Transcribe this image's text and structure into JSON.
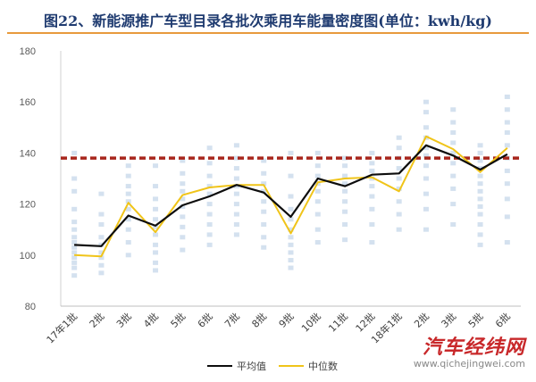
{
  "header": {
    "title": "图22、新能源推广车型目录各批次乘用车能量密度图(单位：kwh/kg)"
  },
  "watermark": {
    "name": "汽车经纬网",
    "url": "www.qichejingwei.com"
  },
  "colors": {
    "mean": "#0d0d0d",
    "median": "#f0c419",
    "reference": "#a8261c",
    "scatter": "#c5d7ea",
    "title": "#1f3b70",
    "title_rule": "#e89a3c"
  },
  "chart_data": {
    "type": "line",
    "title": "图22、新能源推广车型目录各批次乘用车能量密度图(单位：kwh/kg)",
    "categories": [
      "17年1批",
      "2批",
      "3批",
      "4批",
      "5批",
      "6批",
      "7批",
      "8批",
      "9批",
      "10批",
      "11批",
      "12批",
      "18年1批",
      "2批",
      "3批",
      "5批",
      "6批"
    ],
    "ylim": [
      80,
      180
    ],
    "yticks": [
      80,
      100,
      120,
      140,
      160,
      180
    ],
    "grid": false,
    "legend_position": "bottom",
    "series": [
      {
        "name": "平均值",
        "color": "#0d0d0d",
        "values": [
          104,
          103.5,
          115.5,
          111.5,
          119.5,
          123,
          127.5,
          124.5,
          115,
          130,
          127,
          131.5,
          132,
          143,
          139,
          133.5,
          139.5
        ]
      },
      {
        "name": "中位数",
        "color": "#f0c419",
        "values": [
          100,
          99.5,
          120.5,
          109,
          123.5,
          126.5,
          127.5,
          127.5,
          108.5,
          128.5,
          130,
          130.5,
          125,
          146.5,
          141.5,
          132.5,
          142
        ]
      }
    ],
    "reference_line": {
      "value": 138
    },
    "scatter_points": [
      [
        0,
        92
      ],
      [
        0,
        95
      ],
      [
        0,
        97
      ],
      [
        0,
        99
      ],
      [
        0,
        101
      ],
      [
        0,
        103
      ],
      [
        0,
        105
      ],
      [
        0,
        107
      ],
      [
        0,
        110
      ],
      [
        0,
        113
      ],
      [
        0,
        118
      ],
      [
        0,
        125
      ],
      [
        0,
        130
      ],
      [
        0,
        140
      ],
      [
        1,
        93
      ],
      [
        1,
        96
      ],
      [
        1,
        99
      ],
      [
        1,
        101
      ],
      [
        1,
        104
      ],
      [
        1,
        107
      ],
      [
        1,
        112
      ],
      [
        1,
        116
      ],
      [
        1,
        124
      ],
      [
        2,
        100
      ],
      [
        2,
        105
      ],
      [
        2,
        110
      ],
      [
        2,
        114
      ],
      [
        2,
        118
      ],
      [
        2,
        121
      ],
      [
        2,
        124
      ],
      [
        2,
        127
      ],
      [
        2,
        131
      ],
      [
        2,
        135
      ],
      [
        3,
        94
      ],
      [
        3,
        97
      ],
      [
        3,
        101
      ],
      [
        3,
        104
      ],
      [
        3,
        108
      ],
      [
        3,
        111
      ],
      [
        3,
        114
      ],
      [
        3,
        118
      ],
      [
        3,
        122
      ],
      [
        3,
        127
      ],
      [
        3,
        135
      ],
      [
        4,
        102
      ],
      [
        4,
        107
      ],
      [
        4,
        111
      ],
      [
        4,
        115
      ],
      [
        4,
        119
      ],
      [
        4,
        122
      ],
      [
        4,
        125
      ],
      [
        4,
        128
      ],
      [
        4,
        132
      ],
      [
        4,
        137
      ],
      [
        5,
        104
      ],
      [
        5,
        108
      ],
      [
        5,
        112
      ],
      [
        5,
        116
      ],
      [
        5,
        120
      ],
      [
        5,
        124
      ],
      [
        5,
        127
      ],
      [
        5,
        131
      ],
      [
        5,
        136
      ],
      [
        5,
        142
      ],
      [
        6,
        108
      ],
      [
        6,
        112
      ],
      [
        6,
        116
      ],
      [
        6,
        120
      ],
      [
        6,
        124
      ],
      [
        6,
        127
      ],
      [
        6,
        130
      ],
      [
        6,
        134
      ],
      [
        6,
        138
      ],
      [
        6,
        143
      ],
      [
        7,
        103
      ],
      [
        7,
        107
      ],
      [
        7,
        112
      ],
      [
        7,
        117
      ],
      [
        7,
        121
      ],
      [
        7,
        125
      ],
      [
        7,
        128
      ],
      [
        7,
        132
      ],
      [
        7,
        137
      ],
      [
        8,
        95
      ],
      [
        8,
        98
      ],
      [
        8,
        101
      ],
      [
        8,
        104
      ],
      [
        8,
        107
      ],
      [
        8,
        110
      ],
      [
        8,
        114
      ],
      [
        8,
        118
      ],
      [
        8,
        123
      ],
      [
        8,
        131
      ],
      [
        8,
        140
      ],
      [
        9,
        105
      ],
      [
        9,
        110
      ],
      [
        9,
        116
      ],
      [
        9,
        121
      ],
      [
        9,
        125
      ],
      [
        9,
        128
      ],
      [
        9,
        131
      ],
      [
        9,
        135
      ],
      [
        9,
        140
      ],
      [
        10,
        106
      ],
      [
        10,
        112
      ],
      [
        10,
        117
      ],
      [
        10,
        121
      ],
      [
        10,
        125
      ],
      [
        10,
        128
      ],
      [
        10,
        131
      ],
      [
        10,
        135
      ],
      [
        10,
        138
      ],
      [
        11,
        105
      ],
      [
        11,
        112
      ],
      [
        11,
        118
      ],
      [
        11,
        123
      ],
      [
        11,
        127
      ],
      [
        11,
        130
      ],
      [
        11,
        133
      ],
      [
        11,
        136
      ],
      [
        11,
        140
      ],
      [
        12,
        110
      ],
      [
        12,
        116
      ],
      [
        12,
        121
      ],
      [
        12,
        126
      ],
      [
        12,
        130
      ],
      [
        12,
        134
      ],
      [
        12,
        138
      ],
      [
        12,
        142
      ],
      [
        12,
        146
      ],
      [
        13,
        110
      ],
      [
        13,
        118
      ],
      [
        13,
        124
      ],
      [
        13,
        130
      ],
      [
        13,
        135
      ],
      [
        13,
        139
      ],
      [
        13,
        142
      ],
      [
        13,
        146
      ],
      [
        13,
        150
      ],
      [
        13,
        156
      ],
      [
        13,
        160
      ],
      [
        14,
        112
      ],
      [
        14,
        120
      ],
      [
        14,
        126
      ],
      [
        14,
        131
      ],
      [
        14,
        136
      ],
      [
        14,
        140
      ],
      [
        14,
        144
      ],
      [
        14,
        148
      ],
      [
        14,
        152
      ],
      [
        14,
        157
      ],
      [
        15,
        104
      ],
      [
        15,
        108
      ],
      [
        15,
        112
      ],
      [
        15,
        116
      ],
      [
        15,
        119
      ],
      [
        15,
        122
      ],
      [
        15,
        125
      ],
      [
        15,
        128
      ],
      [
        15,
        131
      ],
      [
        15,
        134
      ],
      [
        15,
        137
      ],
      [
        15,
        140
      ],
      [
        15,
        143
      ],
      [
        16,
        105
      ],
      [
        16,
        115
      ],
      [
        16,
        122
      ],
      [
        16,
        128
      ],
      [
        16,
        133
      ],
      [
        16,
        138
      ],
      [
        16,
        143
      ],
      [
        16,
        148
      ],
      [
        16,
        152
      ],
      [
        16,
        157
      ],
      [
        16,
        162
      ]
    ]
  }
}
